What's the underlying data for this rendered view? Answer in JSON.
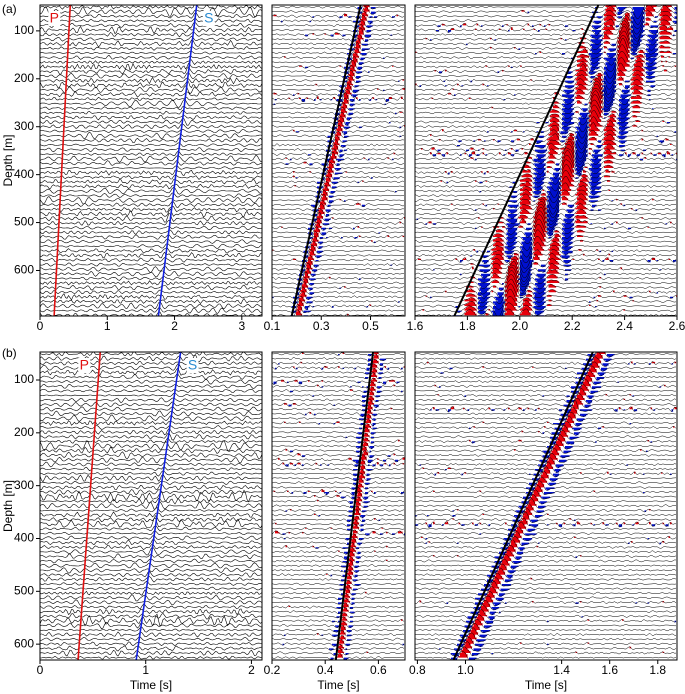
{
  "panel_labels": [
    "(a)",
    "(b)"
  ],
  "colors": {
    "positive": "#e8000b",
    "negative": "#0010d0",
    "wiggle": "#000000"
  },
  "chart_data": [
    {
      "type": "seismic",
      "fill": false,
      "ylabel": "Depth [m]",
      "xlim": [
        0,
        3.3
      ],
      "xticks": [
        0,
        1,
        2,
        3
      ],
      "ylim": [
        695,
        46
      ],
      "yticks": [
        100,
        200,
        300,
        400,
        500,
        600
      ],
      "picks": [
        {
          "name": "P",
          "color": "#e01010",
          "depth": [
            695,
            46
          ],
          "time": [
            0.21,
            0.45
          ]
        },
        {
          "name": "S",
          "color": "#1020e0",
          "label_color": "#2a8ad0",
          "depth": [
            695,
            46
          ],
          "time": [
            1.76,
            2.33
          ]
        }
      ]
    },
    {
      "type": "seismic",
      "fill": true,
      "xlim": [
        0.1,
        0.64
      ],
      "xticks": [
        0.1,
        0.3,
        0.5
      ],
      "ylim": [
        695,
        46
      ],
      "picks": [
        {
          "color": "#000000",
          "depth": [
            695,
            46
          ],
          "time": [
            0.18,
            0.46
          ]
        }
      ]
    },
    {
      "type": "seismic",
      "fill": true,
      "xlim": [
        1.6,
        2.6
      ],
      "xticks": [
        1.6,
        1.8,
        {
          "value": 2,
          "label": "2.0"
        },
        2.2,
        2.4,
        2.6
      ],
      "ylim": [
        695,
        46
      ],
      "picks": [
        {
          "color": "#000000",
          "depth": [
            695,
            46
          ],
          "time": [
            1.75,
            2.3
          ]
        }
      ]
    },
    {
      "type": "seismic",
      "fill": false,
      "ylabel": "Depth [m]",
      "xlabel": "Time [s]",
      "xlim": [
        0,
        2.1
      ],
      "xticks": [
        0,
        1,
        2
      ],
      "ylim": [
        630,
        47
      ],
      "yticks": [
        100,
        200,
        300,
        400,
        500,
        600
      ],
      "picks": [
        {
          "name": "P",
          "color": "#e01010",
          "depth": [
            630,
            47
          ],
          "time": [
            0.36,
            0.57
          ]
        },
        {
          "name": "S",
          "color": "#1020e0",
          "label_color": "#2a8ad0",
          "depth": [
            630,
            47
          ],
          "time": [
            0.91,
            1.33
          ]
        }
      ]
    },
    {
      "type": "seismic",
      "fill": true,
      "xlabel": "Time [s]",
      "xlim": [
        0.2,
        0.7
      ],
      "xticks": [
        0.2,
        0.4,
        0.6
      ],
      "ylim": [
        630,
        47
      ],
      "picks": [
        {
          "color": "#000000",
          "depth": [
            630,
            47
          ],
          "time": [
            0.44,
            0.58
          ]
        }
      ]
    },
    {
      "type": "seismic",
      "fill": true,
      "xlabel": "Time [s]",
      "xlim": [
        0.79,
        1.88
      ],
      "xticks": [
        0.8,
        {
          "value": 1,
          "label": "1.0"
        },
        1.4,
        1.6,
        1.8
      ],
      "ylim": [
        630,
        47
      ],
      "picks": [
        {
          "color": "#000000",
          "depth": [
            630,
            47
          ],
          "time": [
            0.95,
            1.53
          ]
        }
      ]
    }
  ]
}
